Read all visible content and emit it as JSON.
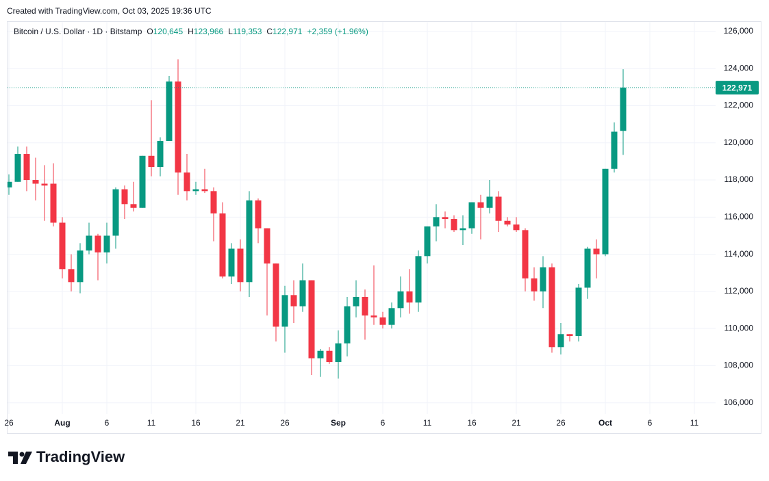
{
  "created": "Created with TradingView.com, Oct 03, 2025 19:36 UTC",
  "brand": "TradingView",
  "chart_data": {
    "type": "candlestick",
    "title": "Bitcoin / U.S. Dollar · 1D · Bitstamp",
    "ohlc": [
      {
        "label": "O",
        "value": "120,645"
      },
      {
        "label": "H",
        "value": "123,966"
      },
      {
        "label": "L",
        "value": "119,353"
      },
      {
        "label": "C",
        "value": "122,971"
      }
    ],
    "change": "+2,359 (+1.96%)",
    "colors": {
      "up": "#089981",
      "down": "#f23645"
    },
    "grid": true,
    "x": [
      "2025-07-26",
      "2025-07-27",
      "2025-07-28",
      "2025-07-29",
      "2025-07-30",
      "2025-07-31",
      "2025-08-01",
      "2025-08-02",
      "2025-08-03",
      "2025-08-04",
      "2025-08-05",
      "2025-08-06",
      "2025-08-07",
      "2025-08-08",
      "2025-08-09",
      "2025-08-10",
      "2025-08-11",
      "2025-08-12",
      "2025-08-13",
      "2025-08-14",
      "2025-08-15",
      "2025-08-16",
      "2025-08-17",
      "2025-08-18",
      "2025-08-19",
      "2025-08-20",
      "2025-08-21",
      "2025-08-22",
      "2025-08-23",
      "2025-08-24",
      "2025-08-25",
      "2025-08-26",
      "2025-08-27",
      "2025-08-28",
      "2025-08-29",
      "2025-08-30",
      "2025-08-31",
      "2025-09-01",
      "2025-09-02",
      "2025-09-03",
      "2025-09-04",
      "2025-09-05",
      "2025-09-06",
      "2025-09-07",
      "2025-09-08",
      "2025-09-09",
      "2025-09-10",
      "2025-09-11",
      "2025-09-12",
      "2025-09-13",
      "2025-09-14",
      "2025-09-15",
      "2025-09-16",
      "2025-09-17",
      "2025-09-18",
      "2025-09-19",
      "2025-09-20",
      "2025-09-21",
      "2025-09-22",
      "2025-09-23",
      "2025-09-24",
      "2025-09-25",
      "2025-09-26",
      "2025-09-27",
      "2025-09-28",
      "2025-09-29",
      "2025-09-30",
      "2025-10-01",
      "2025-10-02",
      "2025-10-03"
    ],
    "open": [
      117600,
      117900,
      119400,
      118000,
      117800,
      117800,
      115700,
      113200,
      112500,
      114200,
      115000,
      114100,
      115000,
      117500,
      116700,
      116500,
      119300,
      118700,
      120100,
      123300,
      118400,
      117400,
      117500,
      117400,
      116200,
      112800,
      114300,
      112500,
      116900,
      115400,
      113500,
      110100,
      111800,
      111200,
      112600,
      108400,
      108800,
      108200,
      109200,
      111200,
      111700,
      110700,
      110600,
      110200,
      111100,
      112000,
      111400,
      113900,
      115500,
      116000,
      115900,
      115300,
      115400,
      116800,
      116500,
      117100,
      115800,
      115600,
      115300,
      112700,
      112000,
      113300,
      109000,
      109700,
      109600,
      112200,
      114300,
      114000,
      118600,
      120645
    ],
    "high": [
      118300,
      119800,
      119800,
      119200,
      118800,
      118900,
      116000,
      114000,
      114600,
      115700,
      115100,
      115700,
      117600,
      117700,
      117900,
      119300,
      122300,
      120300,
      123600,
      124500,
      119400,
      117900,
      118600,
      117600,
      116800,
      114600,
      114800,
      117400,
      117000,
      115400,
      113500,
      112300,
      112600,
      113500,
      112600,
      108900,
      109000,
      109900,
      111700,
      112600,
      112100,
      113400,
      110900,
      111400,
      112800,
      113200,
      114200,
      115500,
      116700,
      116300,
      116100,
      116100,
      116800,
      117200,
      118000,
      117400,
      116000,
      116000,
      115400,
      113300,
      113900,
      113500,
      110300,
      109700,
      112400,
      114400,
      114800,
      118600,
      121100,
      123966
    ],
    "low": [
      117200,
      117900,
      117400,
      116900,
      115800,
      115500,
      112700,
      112000,
      111900,
      114000,
      112600,
      113500,
      114300,
      115900,
      116300,
      116500,
      118200,
      118200,
      120100,
      117200,
      116900,
      117200,
      117300,
      114700,
      112700,
      112400,
      112000,
      111700,
      114600,
      110700,
      109300,
      108700,
      110300,
      110900,
      107500,
      107400,
      108100,
      107300,
      108500,
      110600,
      109400,
      110200,
      110000,
      110000,
      110600,
      110800,
      110900,
      113500,
      114700,
      115400,
      115200,
      114500,
      115100,
      114800,
      116200,
      115200,
      115500,
      115200,
      112000,
      111500,
      111100,
      108700,
      108600,
      109300,
      109300,
      111600,
      112700,
      113900,
      118400,
      119353
    ],
    "close": [
      117900,
      119400,
      118000,
      117800,
      117700,
      115700,
      113200,
      112500,
      114200,
      115000,
      114100,
      115000,
      117500,
      116700,
      116500,
      119300,
      118700,
      120100,
      123300,
      118400,
      117400,
      117500,
      117400,
      116200,
      112800,
      114300,
      112500,
      116900,
      115400,
      113500,
      110100,
      111800,
      111200,
      112600,
      108400,
      108800,
      108200,
      109200,
      111200,
      111700,
      110700,
      110600,
      110200,
      111100,
      112000,
      111400,
      113900,
      115500,
      116000,
      115900,
      115300,
      115400,
      116800,
      116500,
      117100,
      115800,
      115600,
      115300,
      112700,
      112000,
      113300,
      109000,
      109700,
      109600,
      112200,
      114300,
      114000,
      118600,
      120600,
      122971
    ],
    "xlim": [
      "2025-07-26",
      "2025-10-13"
    ],
    "xticks": [
      {
        "value": "2025-07-26",
        "label": "26"
      },
      {
        "value": "2025-08-01",
        "label": "Aug"
      },
      {
        "value": "2025-08-06",
        "label": "6"
      },
      {
        "value": "2025-08-11",
        "label": "11"
      },
      {
        "value": "2025-08-16",
        "label": "16"
      },
      {
        "value": "2025-08-21",
        "label": "21"
      },
      {
        "value": "2025-08-26",
        "label": "26"
      },
      {
        "value": "2025-09-01",
        "label": "Sep"
      },
      {
        "value": "2025-09-06",
        "label": "6"
      },
      {
        "value": "2025-09-11",
        "label": "11"
      },
      {
        "value": "2025-09-16",
        "label": "16"
      },
      {
        "value": "2025-09-21",
        "label": "21"
      },
      {
        "value": "2025-09-26",
        "label": "26"
      },
      {
        "value": "2025-10-01",
        "label": "Oct"
      },
      {
        "value": "2025-10-06",
        "label": "6"
      },
      {
        "value": "2025-10-11",
        "label": "11"
      }
    ],
    "ylim": [
      105400,
      126550
    ],
    "yticks": [
      {
        "value": 106000,
        "label": "106,000"
      },
      {
        "value": 108000,
        "label": "108,000"
      },
      {
        "value": 110000,
        "label": "110,000"
      },
      {
        "value": 112000,
        "label": "112,000"
      },
      {
        "value": 114000,
        "label": "114,000"
      },
      {
        "value": 116000,
        "label": "116,000"
      },
      {
        "value": 118000,
        "label": "118,000"
      },
      {
        "value": 120000,
        "label": "120,000"
      },
      {
        "value": 122000,
        "label": "122,000"
      },
      {
        "value": 124000,
        "label": "124,000"
      },
      {
        "value": 126000,
        "label": "126,000"
      }
    ],
    "last_price": {
      "value": 122971,
      "label": "122,971"
    }
  }
}
